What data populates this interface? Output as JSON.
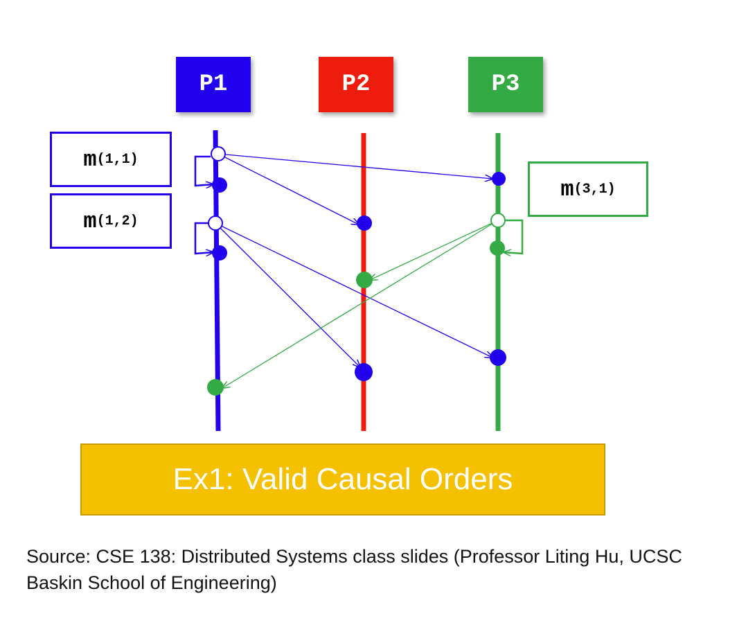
{
  "processes": [
    {
      "label": "P1",
      "color": "#2200ee"
    },
    {
      "label": "P2",
      "color": "#ee1c0c"
    },
    {
      "label": "P3",
      "color": "#33aa44"
    }
  ],
  "messages": {
    "m11": {
      "name": "m",
      "sub": "(1,1)",
      "color": "#2200ee"
    },
    "m12": {
      "name": "m",
      "sub": "(1,2)",
      "color": "#2200ee"
    },
    "m31": {
      "name": "m",
      "sub": "(3,1)",
      "color": "#33aa44"
    }
  },
  "banner": {
    "text": "Ex1: Valid Causal Orders",
    "color": "#f5c000"
  },
  "source": {
    "text": "Source: CSE 138: Distributed Systems class slides (Professor Liting Hu, UCSC Baskin School of Engineering)"
  }
}
